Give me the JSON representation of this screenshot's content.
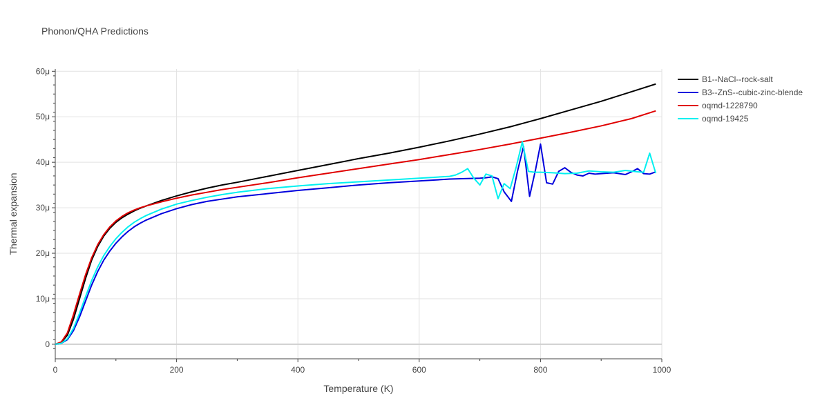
{
  "chart_data": {
    "type": "line",
    "title": "Phonon/QHA Predictions",
    "xlabel": "Temperature (K)",
    "ylabel": "Thermal expansion",
    "xlim": [
      0,
      1000
    ],
    "ylim": [
      -3.2e-06,
      6.05e-05
    ],
    "xticks": [
      0,
      200,
      400,
      600,
      800,
      1000
    ],
    "xtick_labels": [
      "0",
      "200",
      "400",
      "600",
      "800",
      "1000"
    ],
    "yticks": [
      0,
      1e-05,
      2e-05,
      3e-05,
      4e-05,
      5e-05,
      6e-05
    ],
    "ytick_labels": [
      "0",
      "10μ",
      "20μ",
      "30μ",
      "40μ",
      "50μ",
      "60μ"
    ],
    "grid": true,
    "legend_position": "top-right",
    "series": [
      {
        "name": "B1--NaCl--rock-salt",
        "color": "#000000",
        "x": [
          0,
          10,
          20,
          30,
          40,
          50,
          60,
          70,
          80,
          90,
          100,
          110,
          120,
          130,
          140,
          150,
          175,
          200,
          225,
          250,
          275,
          300,
          350,
          400,
          450,
          500,
          550,
          600,
          650,
          700,
          750,
          800,
          850,
          900,
          950,
          990
        ],
        "y": [
          0,
          4e-07,
          2e-06,
          5.5e-06,
          1e-05,
          1.45e-05,
          1.85e-05,
          2.15e-05,
          2.38e-05,
          2.55e-05,
          2.68e-05,
          2.78e-05,
          2.86e-05,
          2.93e-05,
          2.99e-05,
          3.04e-05,
          3.16e-05,
          3.26e-05,
          3.35e-05,
          3.43e-05,
          3.5e-05,
          3.56e-05,
          3.69e-05,
          3.82e-05,
          3.95e-05,
          4.08e-05,
          4.2e-05,
          4.33e-05,
          4.47e-05,
          4.62e-05,
          4.78e-05,
          4.96e-05,
          5.15e-05,
          5.34e-05,
          5.55e-05,
          5.72e-05
        ]
      },
      {
        "name": "B3--ZnS--cubic-zinc-blende",
        "color": "#0000dd",
        "x": [
          0,
          10,
          20,
          30,
          40,
          50,
          60,
          70,
          80,
          90,
          100,
          110,
          120,
          130,
          140,
          150,
          175,
          200,
          225,
          250,
          275,
          300,
          350,
          400,
          450,
          500,
          550,
          600,
          650,
          700,
          710,
          720,
          730,
          740,
          752,
          762,
          772,
          782,
          792,
          800,
          810,
          820,
          830,
          840,
          850,
          860,
          870,
          880,
          890,
          900,
          920,
          940,
          950,
          960,
          970,
          980,
          990
        ],
        "y": [
          0,
          2e-07,
          1e-06,
          3e-06,
          6e-06,
          9.5e-06,
          1.3e-05,
          1.6e-05,
          1.85e-05,
          2.05e-05,
          2.22e-05,
          2.36e-05,
          2.48e-05,
          2.58e-05,
          2.66e-05,
          2.73e-05,
          2.87e-05,
          2.98e-05,
          3.07e-05,
          3.14e-05,
          3.19e-05,
          3.24e-05,
          3.31e-05,
          3.38e-05,
          3.44e-05,
          3.5e-05,
          3.55e-05,
          3.59e-05,
          3.63e-05,
          3.65e-05,
          3.66e-05,
          3.68e-05,
          3.64e-05,
          3.35e-05,
          3.14e-05,
          3.8e-05,
          4.35e-05,
          3.25e-05,
          3.85e-05,
          4.4e-05,
          3.55e-05,
          3.52e-05,
          3.8e-05,
          3.88e-05,
          3.78e-05,
          3.72e-05,
          3.7e-05,
          3.76e-05,
          3.74e-05,
          3.75e-05,
          3.77e-05,
          3.73e-05,
          3.79e-05,
          3.86e-05,
          3.75e-05,
          3.74e-05,
          3.79e-05
        ]
      },
      {
        "name": "oqmd-1228790",
        "color": "#e00000",
        "x": [
          0,
          10,
          20,
          30,
          40,
          50,
          60,
          70,
          80,
          90,
          100,
          110,
          120,
          130,
          140,
          150,
          175,
          200,
          225,
          250,
          275,
          300,
          350,
          400,
          450,
          500,
          550,
          600,
          650,
          700,
          750,
          800,
          850,
          900,
          950,
          990
        ],
        "y": [
          0,
          5e-07,
          2.5e-06,
          6.5e-06,
          1.1e-05,
          1.53e-05,
          1.9e-05,
          2.19e-05,
          2.41e-05,
          2.58e-05,
          2.71e-05,
          2.81e-05,
          2.89e-05,
          2.95e-05,
          3e-05,
          3.04e-05,
          3.13e-05,
          3.21e-05,
          3.28e-05,
          3.34e-05,
          3.4e-05,
          3.45e-05,
          3.55e-05,
          3.66e-05,
          3.76e-05,
          3.86e-05,
          3.96e-05,
          4.06e-05,
          4.17e-05,
          4.28e-05,
          4.4e-05,
          4.53e-05,
          4.66e-05,
          4.8e-05,
          4.96e-05,
          5.13e-05
        ]
      },
      {
        "name": "oqmd-19425",
        "color": "#00f0f0",
        "x": [
          0,
          10,
          20,
          30,
          40,
          50,
          60,
          70,
          80,
          90,
          100,
          110,
          120,
          130,
          140,
          150,
          175,
          200,
          225,
          250,
          275,
          300,
          350,
          400,
          450,
          500,
          550,
          600,
          650,
          660,
          670,
          680,
          690,
          700,
          710,
          720,
          730,
          740,
          750,
          760,
          770,
          780,
          790,
          800,
          820,
          840,
          860,
          880,
          900,
          920,
          940,
          960,
          970,
          980,
          990
        ],
        "y": [
          0,
          2e-07,
          1.2e-06,
          3.5e-06,
          6.8e-06,
          1.05e-05,
          1.4e-05,
          1.7e-05,
          1.95e-05,
          2.15e-05,
          2.32e-05,
          2.46e-05,
          2.58e-05,
          2.68e-05,
          2.76e-05,
          2.83e-05,
          2.97e-05,
          3.08e-05,
          3.16e-05,
          3.23e-05,
          3.29e-05,
          3.34e-05,
          3.42e-05,
          3.48e-05,
          3.53e-05,
          3.57e-05,
          3.61e-05,
          3.65e-05,
          3.69e-05,
          3.72e-05,
          3.78e-05,
          3.86e-05,
          3.65e-05,
          3.5e-05,
          3.74e-05,
          3.7e-05,
          3.2e-05,
          3.53e-05,
          3.42e-05,
          3.9e-05,
          4.45e-05,
          3.8e-05,
          3.78e-05,
          3.78e-05,
          3.77e-05,
          3.75e-05,
          3.76e-05,
          3.81e-05,
          3.79e-05,
          3.78e-05,
          3.82e-05,
          3.79e-05,
          3.78e-05,
          4.2e-05,
          3.76e-05
        ]
      }
    ]
  }
}
